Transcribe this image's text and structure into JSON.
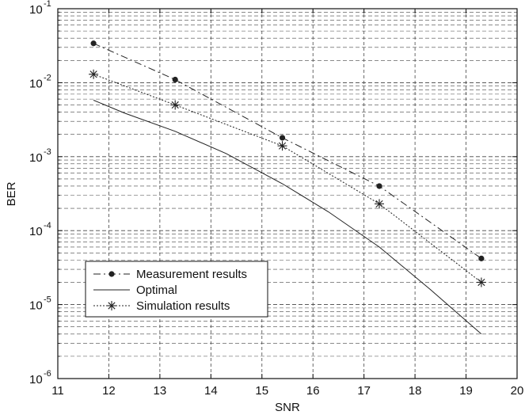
{
  "chart_data": {
    "type": "line",
    "xlabel": "SNR",
    "ylabel": "BER",
    "xscale": "linear",
    "yscale": "log",
    "xlim": [
      11,
      20
    ],
    "ylim": [
      1e-06,
      0.1
    ],
    "x_ticks": [
      11,
      12,
      13,
      14,
      15,
      16,
      17,
      18,
      19,
      20
    ],
    "x_tick_labels": [
      "11",
      "12",
      "13",
      "14",
      "15",
      "16",
      "17",
      "18",
      "19",
      "20"
    ],
    "y_ticks": [
      1e-06,
      1e-05,
      0.0001,
      0.001,
      0.01,
      0.1
    ],
    "y_tick_labels": [
      {
        "base": "10",
        "exp": "-6"
      },
      {
        "base": "10",
        "exp": "-5"
      },
      {
        "base": "10",
        "exp": "-4"
      },
      {
        "base": "10",
        "exp": "-3"
      },
      {
        "base": "10",
        "exp": "-2"
      },
      {
        "base": "10",
        "exp": "-1"
      }
    ],
    "grid": true,
    "grid_style": "dashed",
    "legend_position": "lower-left",
    "series": [
      {
        "name": "Measurement results",
        "line_style": "dash-dot",
        "marker": "dot",
        "show_line": true,
        "x": [
          11.7,
          13.3,
          15.4,
          17.3,
          19.3
        ],
        "y": [
          0.034,
          0.011,
          0.0018,
          0.0004,
          4.2e-05
        ]
      },
      {
        "name": "Optimal",
        "line_style": "solid",
        "marker": "none",
        "x": [
          11.7,
          12.3,
          13.3,
          14.3,
          15.4,
          16.3,
          17.3,
          18.3,
          19.3
        ],
        "y": [
          0.0058,
          0.0039,
          0.0022,
          0.0011,
          0.00043,
          0.00018,
          6e-05,
          1.6e-05,
          4e-06
        ]
      },
      {
        "name": "Simulation results",
        "line_style": "dotted",
        "marker": "star",
        "x": [
          11.7,
          13.3,
          15.4,
          17.3,
          19.3
        ],
        "y": [
          0.013,
          0.005,
          0.0014,
          0.00023,
          2e-05
        ]
      }
    ]
  },
  "colors": {
    "line": "#222222",
    "grid": "#444444",
    "background": "#ffffff"
  }
}
